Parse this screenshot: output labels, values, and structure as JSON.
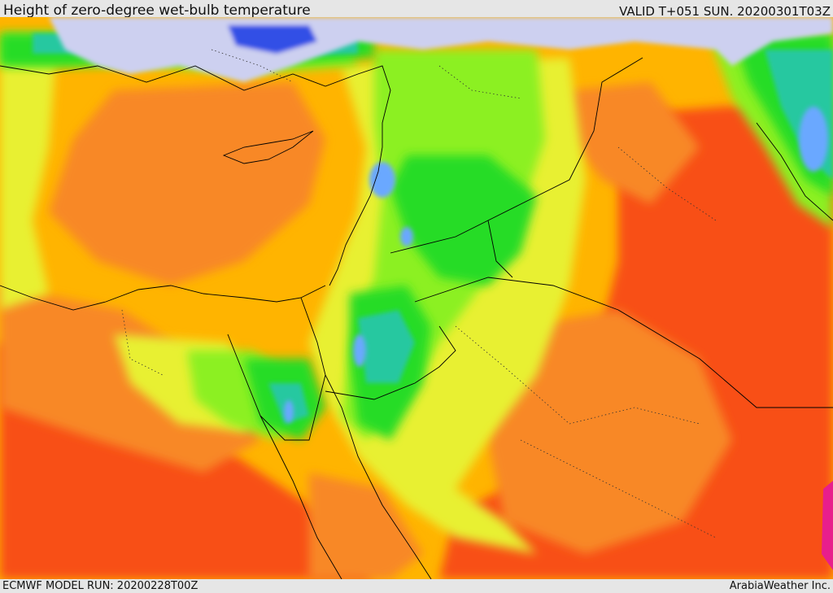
{
  "header": {
    "title": "Height of zero-degree wet-bulb temperature",
    "valid": "VALID T+051 SUN. 20200301T03Z"
  },
  "footer": {
    "model_run": "ECMWF MODEL RUN: 20200228T00Z",
    "brand": "ArabiaWeather Inc."
  },
  "palette": {
    "lavender": "#cdd0f0",
    "blue": "#3250e6",
    "light_blue": "#6aa8ff",
    "teal": "#28c8a0",
    "green": "#28dc28",
    "lime": "#8cf020",
    "yellow": "#e8f030",
    "amber": "#ffb400",
    "orange": "#f88828",
    "red_orange": "#f85018",
    "magenta": "#e81e8c",
    "coast_line": "#000000"
  }
}
